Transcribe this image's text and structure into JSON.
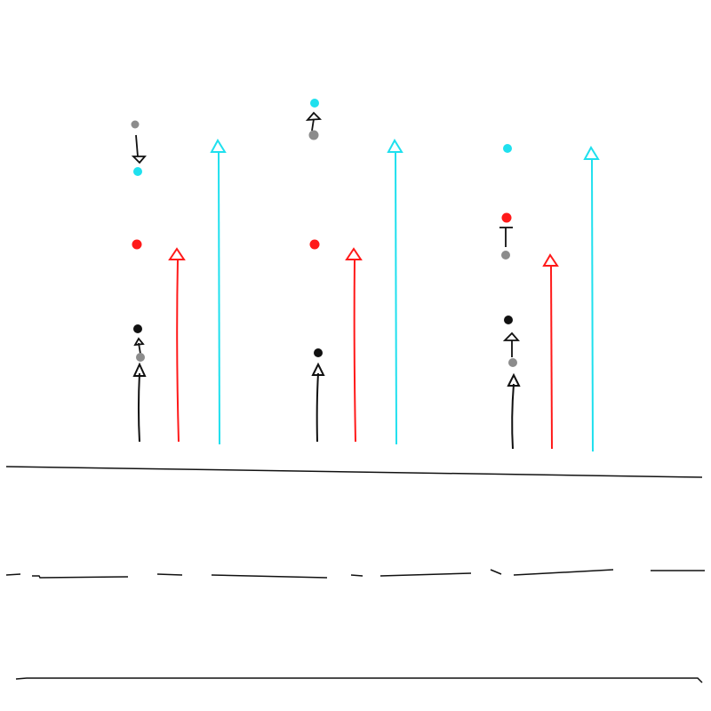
{
  "colors": {
    "background": "#ffffff",
    "black": "#111111",
    "gray": "#8c8c8c",
    "red": "#ff1a1a",
    "cyan": "#1fe0ee"
  },
  "icons": [
    "dot",
    "arrowhead",
    "road-line",
    "dashed-lane-line"
  ],
  "groups": [
    {
      "id": "group-left"
    },
    {
      "id": "group-middle"
    },
    {
      "id": "group-right"
    }
  ]
}
